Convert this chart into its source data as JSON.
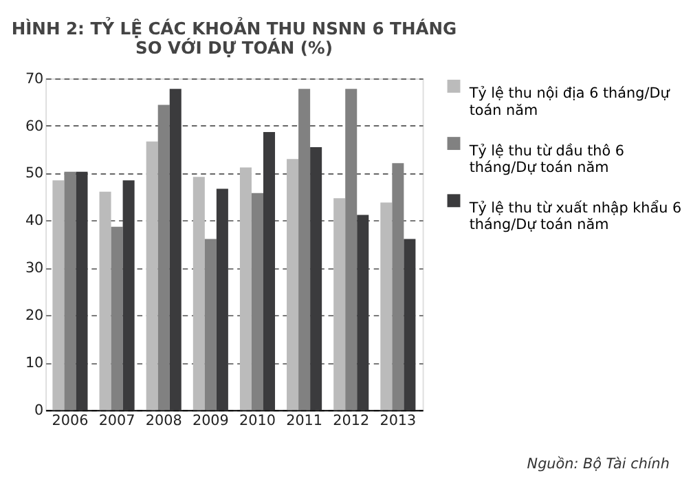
{
  "chart_data": {
    "type": "bar",
    "title": "HÌNH 2: TỶ LỆ CÁC KHOẢN THU NSNN 6 THÁNG SO VỚI DỰ TOÁN (%)",
    "categories": [
      "2006",
      "2007",
      "2008",
      "2009",
      "2010",
      "2011",
      "2012",
      "2013"
    ],
    "series": [
      {
        "name": "Tỷ lệ thu nội địa 6 tháng/Dự toán năm",
        "color": "#bbbbbb",
        "values": [
          48.5,
          46.1,
          56.7,
          49.2,
          51.2,
          53.0,
          44.7,
          43.8
        ]
      },
      {
        "name": "Tỷ lệ thu từ dầu thô 6 tháng/Dự toán năm",
        "color": "#818181",
        "values": [
          50.3,
          38.7,
          64.4,
          36.1,
          45.8,
          67.8,
          67.8,
          52.1
        ]
      },
      {
        "name": "Tỷ lệ thu từ xuất nhập khẩu 6 tháng/Dự toán năm",
        "color": "#3b3b3d",
        "values": [
          50.3,
          48.5,
          67.8,
          46.7,
          58.7,
          55.5,
          41.2,
          36.1
        ]
      }
    ],
    "ylim": [
      0,
      70
    ],
    "yticks": [
      0,
      10,
      20,
      30,
      40,
      50,
      60,
      70
    ],
    "grid": "y",
    "legend": "right",
    "annotations": [
      "Nguồn: Bộ Tài chính"
    ]
  }
}
